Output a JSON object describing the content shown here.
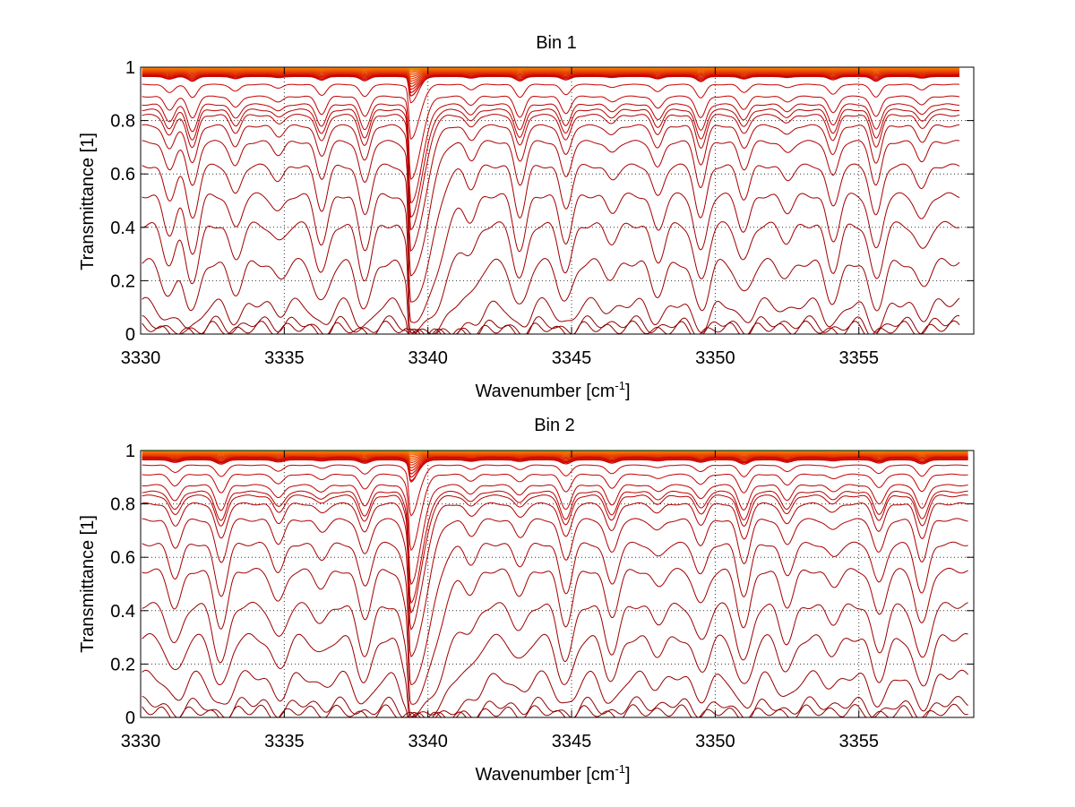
{
  "chart_data": [
    {
      "type": "line",
      "title": "Bin 1",
      "xlabel": "Wavenumber [cm",
      "xlabel_sup": "-1",
      "xlabel_suffix": "]",
      "ylabel": "Transmittance [1]",
      "xlim": [
        3330,
        3359
      ],
      "ylim": [
        0,
        1
      ],
      "xticks": [
        3330,
        3335,
        3340,
        3345,
        3350,
        3355
      ],
      "yticks": [
        0,
        0.2,
        0.4,
        0.6,
        0.8,
        1
      ],
      "ytick_labels": [
        "0",
        "0.2",
        "0.4",
        "0.6",
        "0.8",
        "1"
      ],
      "grid": true,
      "x_end": 3358.5,
      "line_centers": [
        3331.0,
        3331.8,
        3333.3,
        3334.8,
        3336.3,
        3337.8,
        3339.4,
        3341.5,
        3343.2,
        3344.8,
        3346.4,
        3348.0,
        3349.5,
        3351.0,
        3352.5,
        3354.1,
        3355.6,
        3357.2
      ],
      "base_transmittance": [
        0.97,
        0.935,
        0.89,
        0.86,
        0.84,
        0.82,
        0.78,
        0.72,
        0.63,
        0.52,
        0.41,
        0.27,
        0.12,
        0.05,
        0.03
      ],
      "near_unity_count": 14,
      "dip_width": 0.22,
      "strong_line": {
        "x": 3339.4,
        "relative_depth": 0.95
      },
      "colors": {
        "deep": "#8b0000",
        "mid": "#cc0000",
        "top": "#ff8000",
        "edge": "#7fe000"
      }
    },
    {
      "type": "line",
      "title": "Bin 2",
      "xlabel": "Wavenumber [cm",
      "xlabel_sup": "-1",
      "xlabel_suffix": "]",
      "ylabel": "Transmittance [1]",
      "xlim": [
        3330,
        3359
      ],
      "ylim": [
        0,
        1
      ],
      "xticks": [
        3330,
        3335,
        3340,
        3345,
        3350,
        3355
      ],
      "yticks": [
        0,
        0.2,
        0.4,
        0.6,
        0.8,
        1
      ],
      "ytick_labels": [
        "0",
        "0.2",
        "0.4",
        "0.6",
        "0.8",
        "1"
      ],
      "grid": true,
      "x_end": 3358.8,
      "line_centers": [
        3331.2,
        3332.8,
        3334.8,
        3336.3,
        3337.8,
        3339.4,
        3341.5,
        3343.2,
        3344.8,
        3346.4,
        3348.0,
        3349.5,
        3351.0,
        3352.5,
        3354.1,
        3355.7,
        3357.2
      ],
      "base_transmittance": [
        0.975,
        0.945,
        0.91,
        0.87,
        0.845,
        0.83,
        0.8,
        0.74,
        0.65,
        0.55,
        0.42,
        0.3,
        0.16,
        0.06,
        0.03
      ],
      "near_unity_count": 14,
      "dip_width": 0.24,
      "strong_line": {
        "x": 3339.4,
        "relative_depth": 0.9
      },
      "colors": {
        "deep": "#8b0000",
        "mid": "#cc0000",
        "top": "#ff8000",
        "edge": "#7fe000"
      }
    }
  ]
}
